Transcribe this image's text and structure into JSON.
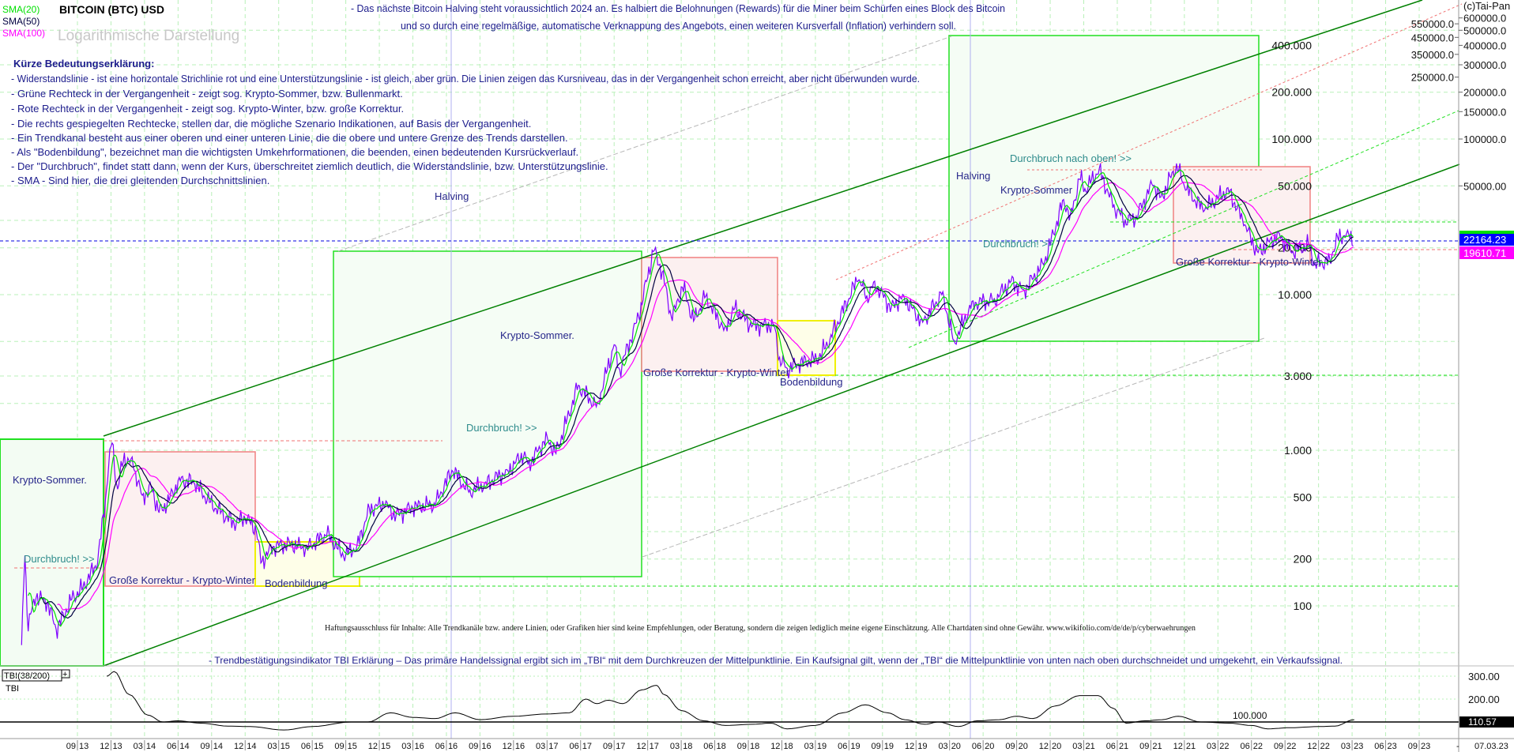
{
  "header": {
    "title": "BITCOIN (BTC) USD",
    "subtitle": "Logarithmische Darstellung",
    "sma_labels": [
      "SMA(20)",
      "SMA(50)",
      "SMA(100)"
    ],
    "copyright": "(c)Tai-Pan",
    "info_line1": "- Das nächste Bitcoin Halving steht voraussichtlich 2024 an. Es halbiert die Belohnungen (Rewards) für die Miner beim Schürfen eines Block des Bitcoin",
    "info_line2": "und so durch eine regelmäßige, automatische Verknappung des Angebots, einen weiteren Kursverfall (Inflation) verhindern soll."
  },
  "legend": {
    "heading": "Kürze Bedeutungserklärung:",
    "lines": [
      "- Widerstandslinie - ist eine horizontale Strichlinie rot und eine Unterstützungslinie - ist gleich, aber grün. Die Linien zeigen das Kursniveau, das in der Vergangenheit schon erreicht, aber nicht überwunden wurde.",
      "- Grüne Rechteck in der Vergangenheit - zeigt sog. Krypto-Sommer, bzw. Bullenmarkt.",
      "- Rote Rechteck in der Vergangenheit - zeigt sog. Krypto-Winter, bzw. große Korrektur.",
      "- Die rechts gespiegelten Rechtecke, stellen dar, die mögliche Szenario Indikationen, auf Basis der Vergangenheit.",
      "- Ein Trendkanal besteht aus einer oberen und einer unteren Linie, die die obere und untere Grenze des Trends darstellen.",
      "- Als \"Bodenbildung\", bezeichnet man die wichtigsten Umkehrformationen, die beenden, einen bedeutenden Kursrückverlauf.",
      "- Der \"Durchbruch\", findet statt dann, wenn der Kurs, überschreitet ziemlich deutlich, die Widerstandslinie, bzw. Unterstützungslinie.",
      "- SMA - Sind hier, die drei gleitenden Durchschnittslinien."
    ]
  },
  "annotations": {
    "halving_1": "Halving",
    "halving_2": "Halving",
    "summer_1": "Krypto-Sommer.",
    "summer_2": "Krypto-Sommer.",
    "summer_3": "Krypto-Sommer",
    "breakout_1": "Durchbruch! >>",
    "breakout_2": "Durchbruch! >>",
    "breakout_3": "Durchbruch! >>",
    "breakout_up": "Durchbruch nach oben! >>",
    "winter_1": "Große Korrektur - Krypto-Winter",
    "winter_2": "Große Korrektur - Krypto-Winter",
    "winter_3": "Große Korrektur - Krypto-Winter",
    "bottom_1": "Bodenbildung",
    "bottom_2": "Bodenbildung",
    "disclaimer": "Haftungsausschluss für Inhalte: Alle Trendkanäle bzw. andere Linien, oder Grafiken hier sind keine Empfehlungen, oder Beratung, sondern die zeigen lediglich meine eigene Einschätzung. Alle Chartdaten sind ohne Gewähr. www.wikifolio.com/de/de/p/cyberwaehrungen",
    "tbi_explanation": "- Trendbestätigungsindikator TBI Erklärung – Das primäre Handelssignal ergibt sich im „TBI“ mit dem Durchkreuzen der Mittelpunktlinie. Ein Kaufsignal gilt, wenn der „TBI“ die Mittelpunktlinie von unten nach oben durchschneidet und umgekehrt, ein Verkaufssignal."
  },
  "colors": {
    "price": "#7f00ff",
    "sma20": "#00e000",
    "sma50": "#000040",
    "sma100": "#ff00ff",
    "grid": "#b8f0b8",
    "last_price_tag": "#0000ff",
    "sma100_tag": "#ff00ff"
  },
  "chart_data": [
    {
      "type": "line",
      "title": "BITCOIN (BTC) USD",
      "y_scale": "log",
      "grid": true,
      "right_axis_ticks": [
        "600000.0",
        "550000.0",
        "500000.0",
        "450000.0",
        "400000.0",
        "350000.0",
        "300000.0",
        "250000.0",
        "200000.0",
        "150000.0",
        "100000.0",
        "50000.00"
      ],
      "right_axis_values": [
        600000,
        550000,
        500000,
        450000,
        400000,
        350000,
        300000,
        250000,
        200000,
        150000,
        100000,
        50000
      ],
      "inner_ticks": [
        "400.000",
        "200.000",
        "100.000",
        "50.000",
        "20.000",
        "10.000",
        "3.000",
        "1.000",
        "500",
        "200",
        "100"
      ],
      "inner_values": [
        400000,
        200000,
        100000,
        50000,
        20000,
        10000,
        3000,
        1000,
        500,
        200,
        100
      ],
      "last_price": "22164.23",
      "sma100_value": "19610.71",
      "x_ticks": [
        [
          "09",
          "13"
        ],
        [
          "12",
          "13"
        ],
        [
          "03",
          "14"
        ],
        [
          "06",
          "14"
        ],
        [
          "09",
          "14"
        ],
        [
          "12",
          "14"
        ],
        [
          "03",
          "15"
        ],
        [
          "06",
          "15"
        ],
        [
          "09",
          "15"
        ],
        [
          "12",
          "15"
        ],
        [
          "03",
          "16"
        ],
        [
          "06",
          "16"
        ],
        [
          "09",
          "16"
        ],
        [
          "12",
          "16"
        ],
        [
          "03",
          "17"
        ],
        [
          "06",
          "17"
        ],
        [
          "09",
          "17"
        ],
        [
          "12",
          "17"
        ],
        [
          "03",
          "18"
        ],
        [
          "06",
          "18"
        ],
        [
          "09",
          "18"
        ],
        [
          "12",
          "18"
        ],
        [
          "03",
          "19"
        ],
        [
          "06",
          "19"
        ],
        [
          "09",
          "19"
        ],
        [
          "12",
          "19"
        ],
        [
          "03",
          "20"
        ],
        [
          "06",
          "20"
        ],
        [
          "09",
          "20"
        ],
        [
          "12",
          "20"
        ],
        [
          "03",
          "21"
        ],
        [
          "06",
          "21"
        ],
        [
          "09",
          "21"
        ],
        [
          "12",
          "21"
        ],
        [
          "03",
          "22"
        ],
        [
          "06",
          "22"
        ],
        [
          "09",
          "22"
        ],
        [
          "12",
          "22"
        ],
        [
          "03",
          "23"
        ],
        [
          "06",
          "23"
        ],
        [
          "09",
          "23"
        ]
      ],
      "x_end_label": "07.03.23",
      "series": [
        {
          "name": "BITCOIN (BTC) USD",
          "points": [
            [
              "2013-04-01",
              55
            ],
            [
              "2013-04-10",
              220
            ],
            [
              "2013-04-18",
              75
            ],
            [
              "2013-05-10",
              115
            ],
            [
              "2013-06-10",
              105
            ],
            [
              "2013-07-05",
              70
            ],
            [
              "2013-08-15",
              110
            ],
            [
              "2013-09-15",
              130
            ],
            [
              "2013-10-25",
              190
            ],
            [
              "2013-11-15",
              450
            ],
            [
              "2013-11-25",
              800
            ],
            [
              "2013-12-04",
              1130
            ],
            [
              "2013-12-18",
              550
            ],
            [
              "2014-01-05",
              900
            ],
            [
              "2014-02-01",
              800
            ],
            [
              "2014-02-25",
              500
            ],
            [
              "2014-03-20",
              580
            ],
            [
              "2014-04-10",
              400
            ],
            [
              "2014-05-01",
              450
            ],
            [
              "2014-06-05",
              650
            ],
            [
              "2014-07-15",
              620
            ],
            [
              "2014-08-20",
              480
            ],
            [
              "2014-09-25",
              400
            ],
            [
              "2014-11-01",
              340
            ],
            [
              "2014-12-01",
              370
            ],
            [
              "2014-12-31",
              310
            ],
            [
              "2015-01-14",
              190
            ],
            [
              "2015-02-15",
              240
            ],
            [
              "2015-04-01",
              250
            ],
            [
              "2015-05-15",
              235
            ],
            [
              "2015-07-10",
              290
            ],
            [
              "2015-08-25",
              210
            ],
            [
              "2015-10-01",
              240
            ],
            [
              "2015-11-04",
              420
            ],
            [
              "2015-12-15",
              450
            ],
            [
              "2016-01-15",
              380
            ],
            [
              "2016-03-01",
              430
            ],
            [
              "2016-05-01",
              450
            ],
            [
              "2016-06-17",
              750
            ],
            [
              "2016-08-02",
              540
            ],
            [
              "2016-09-15",
              610
            ],
            [
              "2016-11-15",
              730
            ],
            [
              "2016-12-31",
              960
            ],
            [
              "2017-01-10",
              800
            ],
            [
              "2017-03-01",
              1200
            ],
            [
              "2017-03-25",
              950
            ],
            [
              "2017-05-25",
              2600
            ],
            [
              "2017-07-15",
              1900
            ],
            [
              "2017-09-01",
              4800
            ],
            [
              "2017-09-15",
              3200
            ],
            [
              "2017-11-08",
              7400
            ],
            [
              "2017-12-17",
              19500
            ],
            [
              "2018-01-10",
              14000
            ],
            [
              "2018-02-06",
              6900
            ],
            [
              "2018-03-05",
              11400
            ],
            [
              "2018-04-05",
              6700
            ],
            [
              "2018-05-05",
              9800
            ],
            [
              "2018-06-28",
              5900
            ],
            [
              "2018-07-25",
              8200
            ],
            [
              "2018-09-10",
              6300
            ],
            [
              "2018-11-10",
              6400
            ],
            [
              "2018-11-25",
              3900
            ],
            [
              "2018-12-15",
              3300
            ],
            [
              "2019-01-15",
              3600
            ],
            [
              "2019-03-10",
              3900
            ],
            [
              "2019-04-10",
              5200
            ],
            [
              "2019-06-26",
              12800
            ],
            [
              "2019-07-20",
              9600
            ],
            [
              "2019-08-10",
              11800
            ],
            [
              "2019-09-25",
              8200
            ],
            [
              "2019-10-26",
              9800
            ],
            [
              "2019-12-18",
              6600
            ],
            [
              "2020-02-12",
              10300
            ],
            [
              "2020-03-13",
              4900
            ],
            [
              "2020-05-01",
              8800
            ],
            [
              "2020-07-01",
              9200
            ],
            [
              "2020-08-17",
              12200
            ],
            [
              "2020-09-20",
              10500
            ],
            [
              "2020-11-15",
              16000
            ],
            [
              "2021-01-08",
              41000
            ],
            [
              "2021-01-25",
              31000
            ],
            [
              "2021-02-21",
              57000
            ],
            [
              "2021-03-05",
              47000
            ],
            [
              "2021-04-13",
              64000
            ],
            [
              "2021-05-20",
              37000
            ],
            [
              "2021-06-22",
              30000
            ],
            [
              "2021-07-20",
              30500
            ],
            [
              "2021-09-06",
              52000
            ],
            [
              "2021-09-28",
              41500
            ],
            [
              "2021-11-10",
              68000
            ],
            [
              "2021-12-05",
              48000
            ],
            [
              "2022-01-23",
              35000
            ],
            [
              "2022-03-29",
              47500
            ],
            [
              "2022-05-12",
              28500
            ],
            [
              "2022-06-18",
              18500
            ],
            [
              "2022-08-14",
              24500
            ],
            [
              "2022-09-20",
              18800
            ],
            [
              "2022-11-05",
              21000
            ],
            [
              "2022-11-21",
              15700
            ],
            [
              "2022-12-31",
              16500
            ],
            [
              "2023-01-21",
              23000
            ],
            [
              "2023-02-20",
              24800
            ],
            [
              "2023-03-07",
              22164
            ]
          ]
        },
        {
          "name": "SMA(20)",
          "period_days": 20
        },
        {
          "name": "SMA(50)",
          "period_days": 50
        },
        {
          "name": "SMA(100)",
          "period_days": 100
        }
      ]
    },
    {
      "type": "line",
      "title": "TBI(38/200)",
      "series_label": "TBI",
      "y_ticks": [
        "300.00",
        "200.00"
      ],
      "y_tick_values": [
        300,
        200
      ],
      "midline_label": "100.000",
      "midline_value": 100,
      "last_value": "110.57",
      "series": [
        {
          "name": "TBI",
          "points": [
            [
              "2013-11-20",
              300
            ],
            [
              "2013-12-10",
              320
            ],
            [
              "2014-01-20",
              220
            ],
            [
              "2014-03-10",
              130
            ],
            [
              "2014-04-20",
              100
            ],
            [
              "2014-06-01",
              105
            ],
            [
              "2014-08-01",
              95
            ],
            [
              "2014-10-15",
              82
            ],
            [
              "2014-12-15",
              80
            ],
            [
              "2015-03-15",
              65
            ],
            [
              "2015-06-01",
              80
            ],
            [
              "2015-09-15",
              100
            ],
            [
              "2015-11-01",
              100
            ],
            [
              "2015-12-31",
              140
            ],
            [
              "2016-03-01",
              120
            ],
            [
              "2016-05-01",
              115
            ],
            [
              "2016-06-25",
              140
            ],
            [
              "2016-09-01",
              110
            ],
            [
              "2016-12-01",
              125
            ],
            [
              "2017-03-01",
              135
            ],
            [
              "2017-05-01",
              140
            ],
            [
              "2017-06-15",
              200
            ],
            [
              "2017-07-15",
              180
            ],
            [
              "2017-08-15",
              195
            ],
            [
              "2017-09-25",
              180
            ],
            [
              "2017-11-15",
              240
            ],
            [
              "2017-12-25",
              260
            ],
            [
              "2018-01-15",
              220
            ],
            [
              "2018-03-01",
              150
            ],
            [
              "2018-05-01",
              105
            ],
            [
              "2018-06-30",
              85
            ],
            [
              "2018-09-15",
              90
            ],
            [
              "2018-11-01",
              95
            ],
            [
              "2018-12-15",
              70
            ],
            [
              "2019-03-01",
              85
            ],
            [
              "2019-05-15",
              140
            ],
            [
              "2019-07-15",
              175
            ],
            [
              "2019-09-15",
              140
            ],
            [
              "2019-11-01",
              110
            ],
            [
              "2019-12-25",
              90
            ],
            [
              "2020-02-01",
              100
            ],
            [
              "2020-03-25",
              80
            ],
            [
              "2020-05-15",
              105
            ],
            [
              "2020-07-15",
              110
            ],
            [
              "2020-09-01",
              125
            ],
            [
              "2020-10-15",
              115
            ],
            [
              "2020-12-15",
              170
            ],
            [
              "2021-02-20",
              215
            ],
            [
              "2021-04-10",
              215
            ],
            [
              "2021-05-20",
              160
            ],
            [
              "2021-06-25",
              95
            ],
            [
              "2021-08-15",
              105
            ],
            [
              "2021-10-01",
              110
            ],
            [
              "2021-11-15",
              125
            ],
            [
              "2022-01-15",
              100
            ],
            [
              "2022-04-01",
              95
            ],
            [
              "2022-06-01",
              85
            ],
            [
              "2022-07-15",
              70
            ],
            [
              "2022-09-15",
              75
            ],
            [
              "2022-12-01",
              80
            ],
            [
              "2023-01-15",
              82
            ],
            [
              "2023-03-07",
              110
            ]
          ]
        }
      ]
    }
  ]
}
